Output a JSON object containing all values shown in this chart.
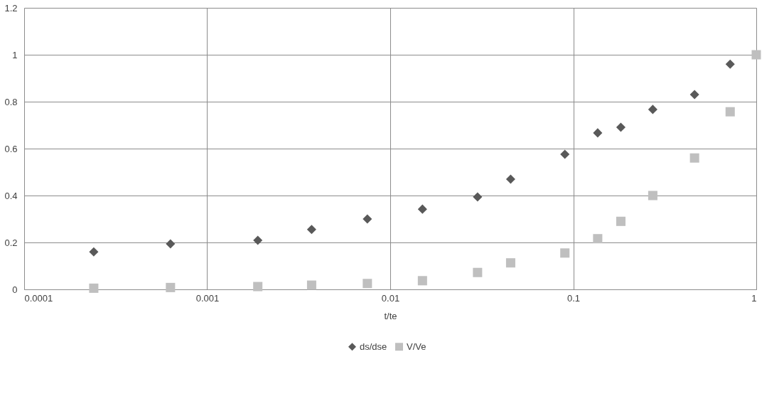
{
  "chart_data": {
    "type": "scatter",
    "xlabel": "t/te",
    "log": "x",
    "x": [
      0.00024,
      0.00063,
      0.00189,
      0.00372,
      0.0075,
      0.015,
      0.03,
      0.0455,
      0.09,
      0.136,
      0.182,
      0.272,
      0.46,
      0.72,
      1.0
    ],
    "series": [
      {
        "name": "ds/dse",
        "color": "#595959",
        "marker": "diamond",
        "x": [
          0.00024,
          0.00063,
          0.00189,
          0.00372,
          0.0075,
          0.015,
          0.03,
          0.0455,
          0.09,
          0.136,
          0.182,
          0.272,
          0.46,
          0.72
        ],
        "values": [
          0.16,
          0.194,
          0.209,
          0.255,
          0.3,
          0.342,
          0.394,
          0.47,
          0.576,
          0.667,
          0.691,
          0.767,
          0.83,
          0.96
        ]
      },
      {
        "name": "V/Ve",
        "color": "#bfbfbf",
        "marker": "square",
        "values": [
          0.005,
          0.008,
          0.012,
          0.018,
          0.025,
          0.037,
          0.072,
          0.113,
          0.155,
          0.216,
          0.29,
          0.4,
          0.56,
          0.757,
          1.0
        ]
      }
    ],
    "xlim": [
      0.0001,
      1
    ],
    "xticks": [
      0.0001,
      0.001,
      0.01,
      0.1,
      1
    ],
    "ylim": [
      0,
      1.2
    ],
    "yticks": [
      0,
      0.2,
      0.4,
      0.6,
      0.8,
      1,
      1.2
    ],
    "grid": true,
    "legend": "bottom"
  }
}
